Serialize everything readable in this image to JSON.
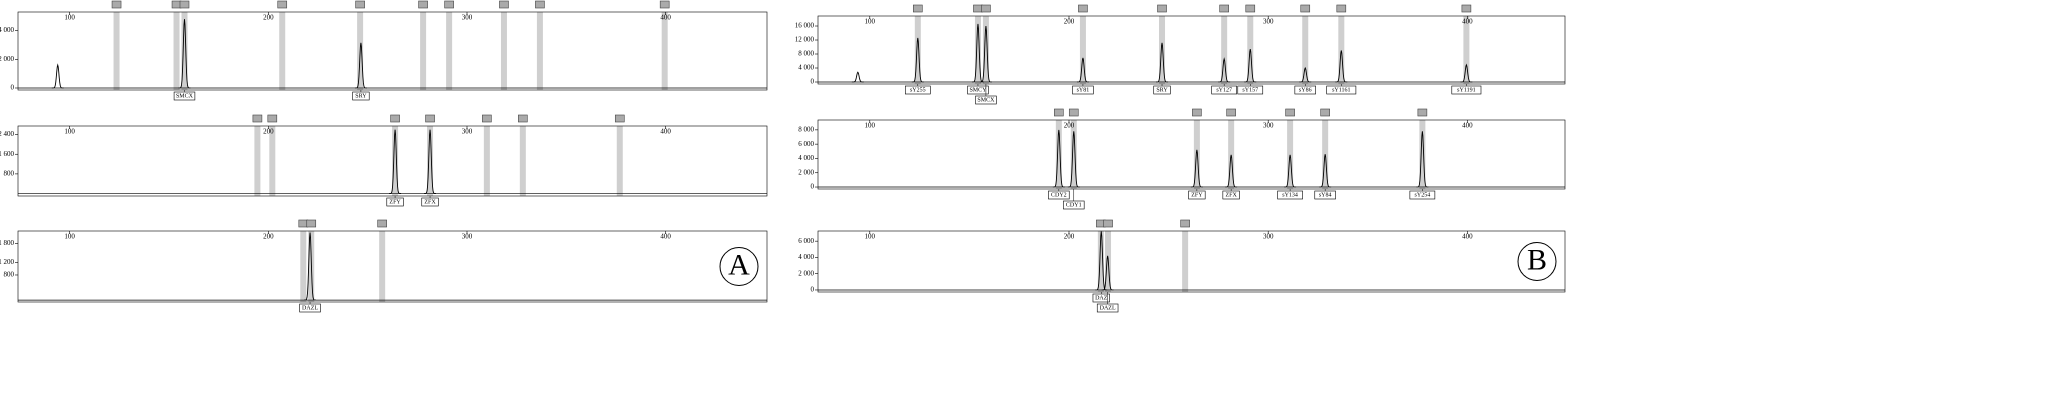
{
  "chart_data": [
    {
      "type": "electropherogram",
      "xlim": [
        74,
        451
      ],
      "xticks": [
        100,
        200,
        300,
        400
      ],
      "ylim": [
        -140,
        5300
      ],
      "yticks": [
        0,
        {
          "value": 2000,
          "label": "2 000"
        },
        {
          "value": 4000,
          "label": "4 000"
        }
      ],
      "bins": [
        123.6,
        153.8,
        157.8,
        207,
        246.2,
        277.9,
        291,
        318.6,
        336.7,
        399.5
      ],
      "peaks_x": [
        94,
        157.8,
        246.6
      ],
      "peaks_y": [
        1600,
        4800,
        3150
      ],
      "peak_labels": [
        null,
        "SMCX",
        "SRY"
      ]
    },
    {
      "type": "electropherogram",
      "xlim": [
        74,
        451
      ],
      "xticks": [
        100,
        200,
        300,
        400
      ],
      "ylim": [
        -100,
        2750
      ],
      "yticks": [
        {
          "value": 800,
          "label": "800"
        },
        {
          "value": 1600,
          "label": "1 600"
        },
        {
          "value": 2400,
          "label": "2 400"
        }
      ],
      "bins": [
        194.5,
        202,
        263.8,
        281.4,
        310,
        328.1,
        376.9
      ],
      "peaks_x": [
        263.8,
        281.4
      ],
      "peaks_y": [
        2600,
        2600
      ],
      "peak_labels": [
        "ZFY",
        "ZFX"
      ]
    },
    {
      "type": "electropherogram",
      "xlim": [
        74,
        451
      ],
      "xticks": [
        100,
        200,
        300,
        400
      ],
      "ylim": [
        -60,
        2200
      ],
      "yticks": [
        {
          "value": 800,
          "label": "800"
        },
        {
          "value": 1200,
          "label": "1 200"
        },
        {
          "value": 1800,
          "label": "1 800"
        }
      ],
      "bins": [
        217.6,
        221.6,
        257.3
      ],
      "peaks_x": [
        221
      ],
      "peaks_y": [
        2150
      ],
      "peak_labels": [
        "DAZL"
      ],
      "panel_label": "A"
    },
    {
      "type": "electropherogram",
      "xlim": [
        74,
        449
      ],
      "xticks": [
        100,
        200,
        300,
        400
      ],
      "ylim": [
        -570,
        18860
      ],
      "yticks": [
        0,
        {
          "value": 4000,
          "label": "4 000"
        },
        {
          "value": 8000,
          "label": "8 000"
        },
        {
          "value": 12000,
          "label": "12 000"
        },
        {
          "value": 16000,
          "label": "16 000"
        }
      ],
      "bins": [
        124.1,
        154.3,
        158.3,
        207,
        246.7,
        277.9,
        291,
        318.6,
        336.7,
        399.5
      ],
      "peaks_x": [
        94,
        124.1,
        154.3,
        158.3,
        207,
        246.7,
        277.9,
        291,
        318.6,
        336.7,
        399.5
      ],
      "peaks_y": [
        2800,
        12600,
        16600,
        16000,
        6900,
        11200,
        6600,
        9400,
        4000,
        9000,
        4900
      ],
      "peak_labels": [
        null,
        "sY255",
        "SMCY",
        "SMCX",
        "sY81",
        "SRY",
        "sY127",
        "sY157",
        "sY86",
        "sY1161",
        "sY1191"
      ]
    },
    {
      "type": "electropherogram",
      "xlim": [
        74,
        449
      ],
      "xticks": [
        100,
        200,
        300,
        400
      ],
      "ylim": [
        -276,
        9380
      ],
      "yticks": [
        0,
        {
          "value": 2000,
          "label": "2 000"
        },
        {
          "value": 4000,
          "label": "4 000"
        },
        {
          "value": 6000,
          "label": "6 000"
        },
        {
          "value": 8000,
          "label": "8 000"
        }
      ],
      "bins": [
        194.9,
        202.4,
        264.2,
        281.4,
        311,
        328.6,
        377.4
      ],
      "peaks_x": [
        194.9,
        202.4,
        264.2,
        281.4,
        311,
        328.6,
        377.4
      ],
      "peaks_y": [
        8000,
        7800,
        5200,
        4500,
        4500,
        4600,
        7800
      ],
      "peak_labels": [
        "CDY2",
        "CDY1",
        "ZFY",
        "ZFX",
        "sY134",
        "sY84",
        "sY254"
      ]
    },
    {
      "type": "electropherogram",
      "xlim": [
        74,
        449
      ],
      "xticks": [
        100,
        200,
        300,
        400
      ],
      "ylim": [
        -250,
        7250
      ],
      "yticks": [
        0,
        {
          "value": 2000,
          "label": "2 000"
        },
        {
          "value": 4000,
          "label": "4 000"
        },
        {
          "value": 6000,
          "label": "6 000"
        }
      ],
      "bins": [
        216,
        219.6,
        258.3
      ],
      "peaks_x": [
        216.2,
        219.4
      ],
      "peaks_y": [
        7200,
        4200
      ],
      "peak_labels": [
        "DAZ",
        "DAZL"
      ],
      "panel_label": "B"
    }
  ]
}
